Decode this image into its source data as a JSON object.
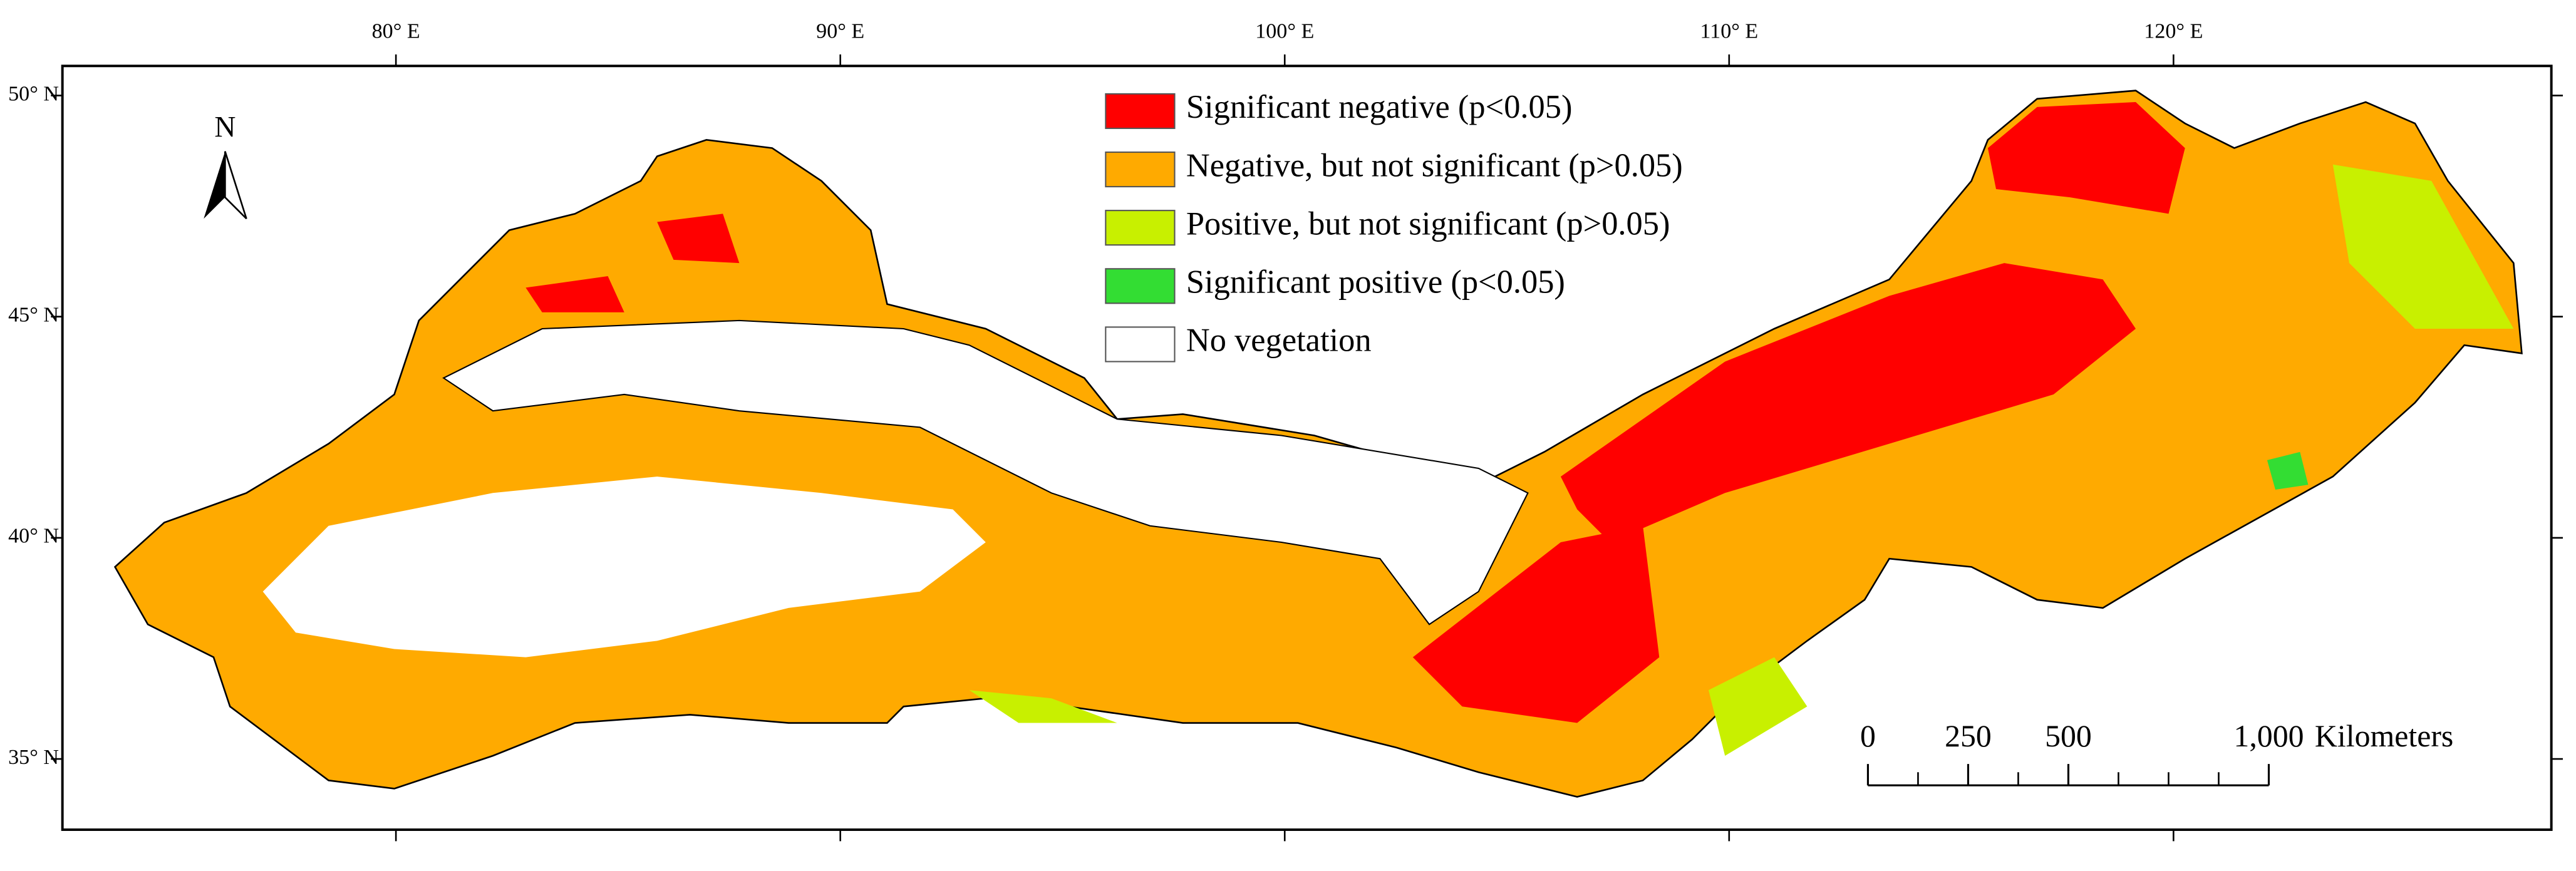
{
  "map": {
    "lon_ticks": [
      {
        "value": 80,
        "label": "80° E"
      },
      {
        "value": 90,
        "label": "90° E"
      },
      {
        "value": 100,
        "label": "100° E"
      },
      {
        "value": 110,
        "label": "110° E"
      },
      {
        "value": 120,
        "label": "120° E"
      }
    ],
    "lat_ticks": [
      {
        "value": 50,
        "label": "50° N"
      },
      {
        "value": 45,
        "label": "45° N"
      },
      {
        "value": 40,
        "label": "40° N"
      },
      {
        "value": 35,
        "label": "35° N"
      }
    ],
    "north_label": "N",
    "legend": [
      {
        "label": "Significant negative (p<0.05)",
        "color": "#ff0000"
      },
      {
        "label": "Negative, but not significant (p>0.05)",
        "color": "#ffaa00"
      },
      {
        "label": "Positive, but not significant (p>0.05)",
        "color": "#c8f000"
      },
      {
        "label": "Significant positive (p<0.05)",
        "color": "#33dd33"
      },
      {
        "label": "No vegetation",
        "color": "#ffffff"
      }
    ],
    "scale_bar": {
      "ticks": [
        {
          "value": 0,
          "label": "0"
        },
        {
          "value": 250,
          "label": "250"
        },
        {
          "value": 500,
          "label": "500"
        },
        {
          "value": 1000,
          "label": "1,000"
        }
      ],
      "unit": "Kilometers"
    }
  }
}
